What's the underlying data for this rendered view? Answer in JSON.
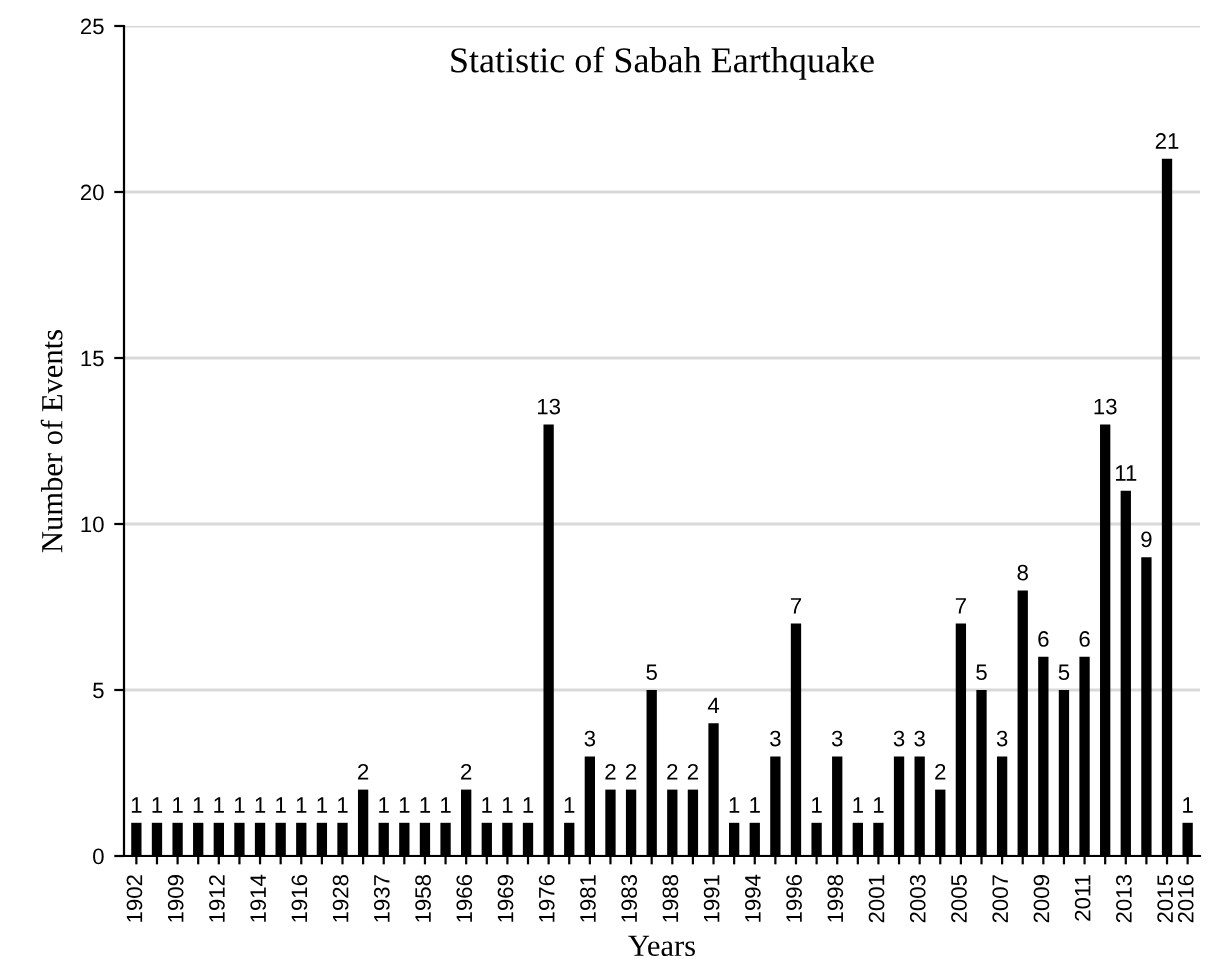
{
  "chart_data": {
    "type": "bar",
    "title": "Statistic of Sabah Earthquake",
    "xlabel": "Years",
    "ylabel": "Number of Events",
    "categories": [
      "1902",
      null,
      "1909",
      null,
      "1912",
      null,
      "1914",
      null,
      "1916",
      null,
      "1928",
      null,
      "1937",
      null,
      "1958",
      null,
      "1966",
      null,
      "1969",
      null,
      "1976",
      null,
      "1981",
      null,
      "1983",
      null,
      "1988",
      null,
      "1991",
      null,
      "1994",
      null,
      "1996",
      null,
      "1998",
      null,
      "2001",
      null,
      "2003",
      null,
      "2005",
      null,
      "2007",
      null,
      "2009",
      null,
      "2011",
      null,
      "2013",
      null,
      "2015",
      "2016"
    ],
    "values": [
      1,
      1,
      1,
      1,
      1,
      1,
      1,
      1,
      1,
      1,
      1,
      2,
      1,
      1,
      1,
      1,
      2,
      1,
      1,
      1,
      13,
      1,
      3,
      2,
      2,
      5,
      2,
      2,
      4,
      1,
      1,
      3,
      7,
      1,
      3,
      1,
      1,
      3,
      3,
      2,
      7,
      5,
      3,
      8,
      6,
      5,
      6,
      13,
      11,
      9,
      21,
      1
    ],
    "color": "#000000",
    "ylim": [
      0,
      25
    ],
    "yticks": [
      0,
      5,
      10,
      15,
      20,
      25
    ],
    "grid": "y",
    "data_labels": true
  }
}
